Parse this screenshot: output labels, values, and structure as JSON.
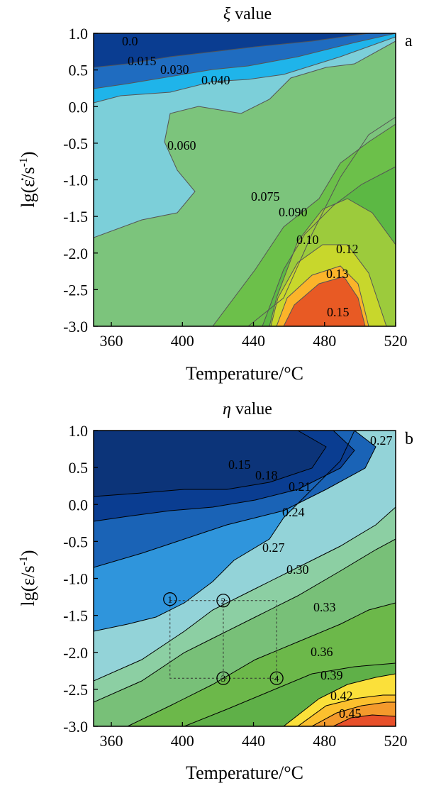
{
  "chart_data": [
    {
      "panel": "a",
      "type": "contour",
      "title": "ξ value",
      "title_symbol": "ξ",
      "title_rest": " value",
      "xlabel": "Temperature/°C",
      "ylabel": "lg(ε̇/s⁻¹)",
      "ylabel_main": "lg(ε̇/s",
      "ylabel_sup": "-1",
      "ylabel_close": ")",
      "xlim": [
        350,
        520
      ],
      "ylim": [
        -3.0,
        1.0
      ],
      "xticks": [
        360,
        400,
        440,
        480,
        520
      ],
      "yticks": [
        "1.0",
        "0.5",
        "0.0",
        "-0.5",
        "-1.0",
        "-1.5",
        "-2.0",
        "-2.5",
        "-3.0"
      ],
      "levels": [
        "0.0",
        "0.015",
        "0.030",
        "0.040",
        "0.060",
        "0.075",
        "0.090",
        "0.10",
        "0.12",
        "0.13",
        "0.15"
      ],
      "colors": [
        "#0a3d91",
        "#1f6cc0",
        "#1fb4ea",
        "#7ccfd9",
        "#7cc47c",
        "#6cc04a",
        "#9ccb3c",
        "#c8d72c",
        "#fbb42a",
        "#f07c30",
        "#e85a24"
      ]
    },
    {
      "panel": "b",
      "type": "contour",
      "title": "η value",
      "title_symbol": "η",
      "title_rest": " value",
      "xlabel": "Temperature/°C",
      "ylabel": "lg(ε/s⁻¹)",
      "ylabel_main": "lg(ε/s",
      "ylabel_sup": "-1",
      "ylabel_close": ")",
      "xlim": [
        350,
        520
      ],
      "ylim": [
        -3.0,
        1.0
      ],
      "xticks": [
        360,
        400,
        440,
        480,
        520
      ],
      "yticks": [
        "1.0",
        "0.5",
        "0.0",
        "-0.5",
        "-1.0",
        "-1.5",
        "-2.0",
        "-2.5",
        "-3.0"
      ],
      "levels": [
        "0.15",
        "0.18",
        "0.21",
        "0.24",
        "0.27",
        "0.30",
        "0.33",
        "0.36",
        "0.39",
        "0.42",
        "0.45",
        "0.27"
      ],
      "colors": [
        "#0a3d91",
        "#1a63b6",
        "#2f95dc",
        "#93d3d8",
        "#8ccfa3",
        "#78c078",
        "#6cb84a",
        "#5fb048",
        "#fbe03a",
        "#fcc02e",
        "#f49a2c",
        "#e8502a"
      ],
      "markers": [
        {
          "id": "1",
          "x": 393,
          "y": -1.28
        },
        {
          "id": "2",
          "x": 423,
          "y": -1.3
        },
        {
          "id": "3",
          "x": 423,
          "y": -2.35
        },
        {
          "id": "4",
          "x": 453,
          "y": -2.35
        }
      ],
      "box": {
        "x": [
          393,
          453
        ],
        "y": [
          -2.35,
          -1.3
        ]
      }
    }
  ],
  "panel_labels": [
    "a",
    "b"
  ]
}
